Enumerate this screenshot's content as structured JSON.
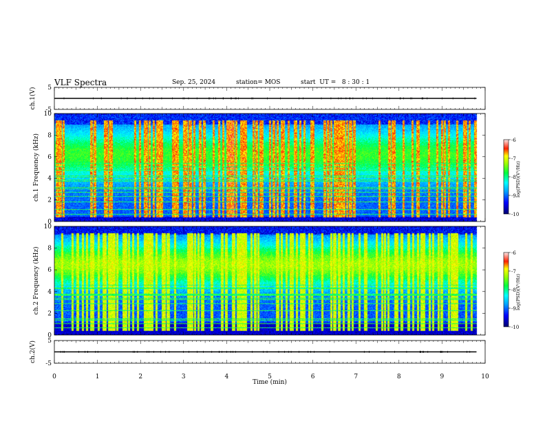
{
  "header": {
    "title": "VLF Spectra",
    "date": "Sep. 25, 2024",
    "station": "station= MOS",
    "start_time": "start  UT =   8 : 30 : 1"
  },
  "chart_data": [
    {
      "type": "line",
      "panel": "ch1-voltage",
      "ylabel": "ch.1(V)",
      "ylim": [
        -5,
        5
      ],
      "yticks": [
        "5",
        "-5"
      ],
      "xlim": [
        0,
        10
      ],
      "series": [
        {
          "x": [
            0,
            9.8
          ],
          "values": [
            0,
            0
          ]
        }
      ]
    },
    {
      "type": "heatmap",
      "panel": "ch1-spectrogram",
      "ylabel": "ch.1 Frequency (kHz)",
      "ylim": [
        0,
        10
      ],
      "yticks": [
        "0",
        "2",
        "4",
        "6",
        "8",
        "10"
      ],
      "xlim": [
        0,
        10
      ],
      "colorbar": {
        "label": "log(PSD)(V²/Hz)",
        "range": [
          -10,
          -6
        ],
        "ticks": [
          "-6",
          "-7",
          "-8",
          "-9",
          "-10"
        ]
      }
    },
    {
      "type": "heatmap",
      "panel": "ch2-spectrogram",
      "ylabel": "ch.2 Frequency (kHz)",
      "ylim": [
        0,
        10
      ],
      "yticks": [
        "0",
        "2",
        "4",
        "6",
        "8",
        "10"
      ],
      "xlim": [
        0,
        10
      ],
      "colorbar": {
        "label": "log(PSD)(V²/Hz)",
        "range": [
          -10,
          -6
        ],
        "ticks": [
          "-6",
          "-7",
          "-8",
          "-9",
          "-10"
        ]
      }
    },
    {
      "type": "line",
      "panel": "ch2-voltage",
      "ylabel": "ch.2(V)",
      "ylim": [
        -5,
        5
      ],
      "yticks": [
        "5",
        "-5"
      ],
      "xlim": [
        0,
        10
      ],
      "xlabel": "Time  (min)",
      "xticks": [
        "0",
        "1",
        "2",
        "3",
        "4",
        "5",
        "6",
        "7",
        "8",
        "9",
        "10"
      ],
      "series": [
        {
          "x": [
            0,
            9.8
          ],
          "values": [
            0,
            0
          ]
        }
      ]
    }
  ],
  "colors": {
    "background_dark": "#000033",
    "colormap": [
      "#000080",
      "#0000ff",
      "#00a0ff",
      "#00ffff",
      "#00ff60",
      "#80ff00",
      "#ffff00",
      "#ff8000",
      "#ff0000",
      "#ffffff"
    ]
  }
}
